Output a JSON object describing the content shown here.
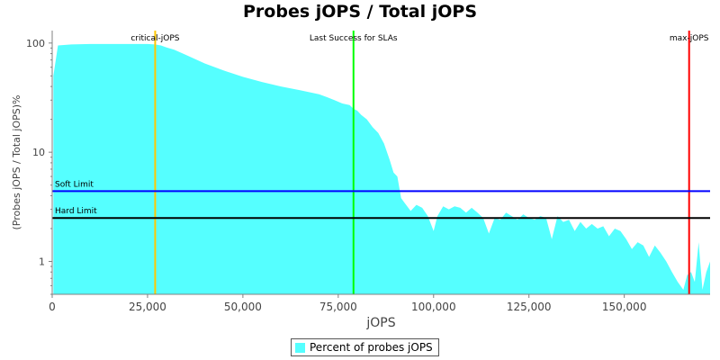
{
  "chart_data": {
    "type": "area",
    "title": "Probes jOPS / Total jOPS",
    "xlabel": "jOPS",
    "ylabel": "(Probes jOPS / Total jOPS)%",
    "y_scale": "log",
    "xlim": [
      0,
      172500
    ],
    "ylim": [
      0.5,
      130
    ],
    "x_ticks": [
      0,
      25000,
      50000,
      75000,
      100000,
      125000,
      150000
    ],
    "x_tick_labels": [
      "0",
      "25,000",
      "50,000",
      "75,000",
      "100,000",
      "125,000",
      "150,000"
    ],
    "y_ticks": [
      1,
      10,
      100
    ],
    "y_tick_labels": [
      "1",
      "10",
      "100"
    ],
    "legend_position": "bottom",
    "area_color": "#55FFFF",
    "series": [
      {
        "name": "Percent of probes jOPS",
        "color": "#55FFFF",
        "x": [
          300,
          1500,
          5000,
          10000,
          15000,
          20000,
          25000,
          27000,
          28500,
          30000,
          32000,
          35000,
          40000,
          45000,
          50000,
          55000,
          60000,
          65000,
          70000,
          72000,
          74000,
          76000,
          78000,
          79000,
          80000,
          81000,
          82500,
          84000,
          85500,
          87000,
          88500,
          89500,
          90500,
          91500,
          92500,
          94000,
          95500,
          97000,
          98500,
          100000,
          101000,
          102500,
          104000,
          105500,
          107000,
          108500,
          110000,
          111500,
          113000,
          114500,
          116000,
          117500,
          119000,
          120500,
          122000,
          123500,
          125000,
          126500,
          128000,
          129500,
          131000,
          132500,
          134000,
          135500,
          137000,
          138500,
          140000,
          141500,
          143000,
          144500,
          146000,
          147500,
          149000,
          150500,
          152000,
          153500,
          155000,
          156500,
          158000,
          159500,
          161000,
          162500,
          164000,
          165500,
          166500,
          167500,
          168500,
          169500,
          170500,
          171500,
          172500
        ],
        "values": [
          50,
          95,
          97,
          98,
          98,
          98,
          98,
          97,
          95,
          91,
          87,
          78,
          65,
          56,
          49,
          44,
          40,
          37,
          34,
          32,
          30,
          28,
          27,
          25,
          24,
          22,
          20,
          17,
          15,
          12,
          8.5,
          6.5,
          6.0,
          3.8,
          3.4,
          2.9,
          3.3,
          3.1,
          2.6,
          1.9,
          2.6,
          3.2,
          3.0,
          3.2,
          3.1,
          2.8,
          3.1,
          2.8,
          2.5,
          1.8,
          2.5,
          2.4,
          2.8,
          2.6,
          2.4,
          2.7,
          2.5,
          2.4,
          2.6,
          2.5,
          1.6,
          2.6,
          2.3,
          2.4,
          1.9,
          2.3,
          2.0,
          2.2,
          2.0,
          2.1,
          1.7,
          2.0,
          1.9,
          1.6,
          1.3,
          1.5,
          1.4,
          1.1,
          1.4,
          1.2,
          1.0,
          0.8,
          0.65,
          0.55,
          0.75,
          0.8,
          0.65,
          1.5,
          0.55,
          0.8,
          1.0
        ]
      }
    ],
    "reference_lines": [
      {
        "type": "vertical",
        "x": 27000,
        "label": "critical-jOPS",
        "color": "#FFC800"
      },
      {
        "type": "vertical",
        "x": 79000,
        "label": "Last Success for SLAs",
        "color": "#00FF00"
      },
      {
        "type": "vertical",
        "x": 167000,
        "label": "max-jOPS",
        "color": "#FF0000"
      },
      {
        "type": "horizontal",
        "y": 4.4,
        "label": "Soft Limit",
        "color": "#0000FF"
      },
      {
        "type": "horizontal",
        "y": 2.5,
        "label": "Hard Limit",
        "color": "#000000"
      }
    ]
  }
}
